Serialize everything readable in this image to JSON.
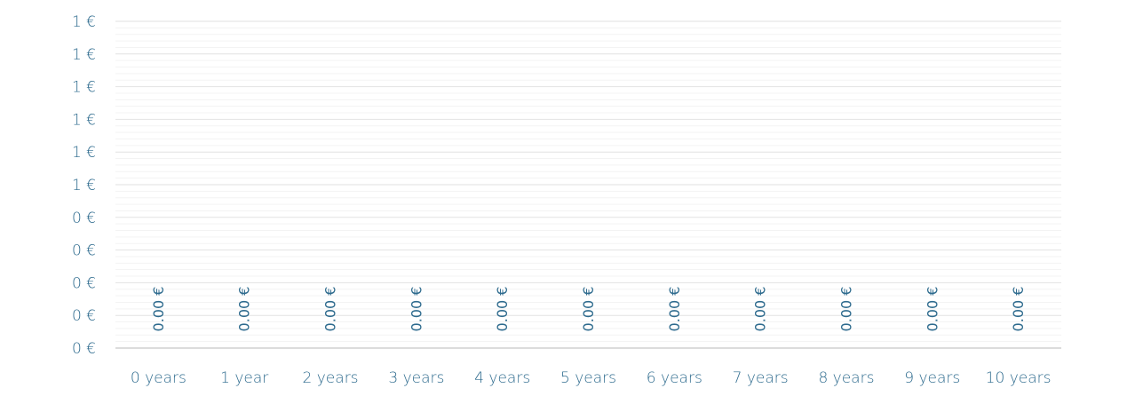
{
  "chart_data": {
    "type": "bar",
    "title": "",
    "xlabel": "",
    "ylabel": "",
    "categories": [
      "0 years",
      "1 year",
      "2 years",
      "3 years",
      "4 years",
      "5 years",
      "6 years",
      "7 years",
      "8 years",
      "9 years",
      "10 years"
    ],
    "values": [
      0,
      0,
      0,
      0,
      0,
      0,
      0,
      0,
      0,
      0,
      0
    ],
    "data_labels": [
      "0.00 €",
      "0.00 €",
      "0.00 €",
      "0.00 €",
      "0.00 €",
      "0.00 €",
      "0.00 €",
      "0.00 €",
      "0.00 €",
      "0.00 €",
      "0.00 €"
    ],
    "y_tick_labels": [
      "0 €",
      "0 €",
      "0 €",
      "0 €",
      "0 €",
      "1 €",
      "1 €",
      "1 €",
      "1 €",
      "1 €",
      "1 €"
    ],
    "ylim": [
      0,
      1
    ],
    "grid": true,
    "legend": "none",
    "colors": {
      "text": "#2e6b8e",
      "grid_major": "#e2e2e2",
      "grid_minor": "#f3f3f3",
      "axis": "#d0d0d0"
    }
  }
}
